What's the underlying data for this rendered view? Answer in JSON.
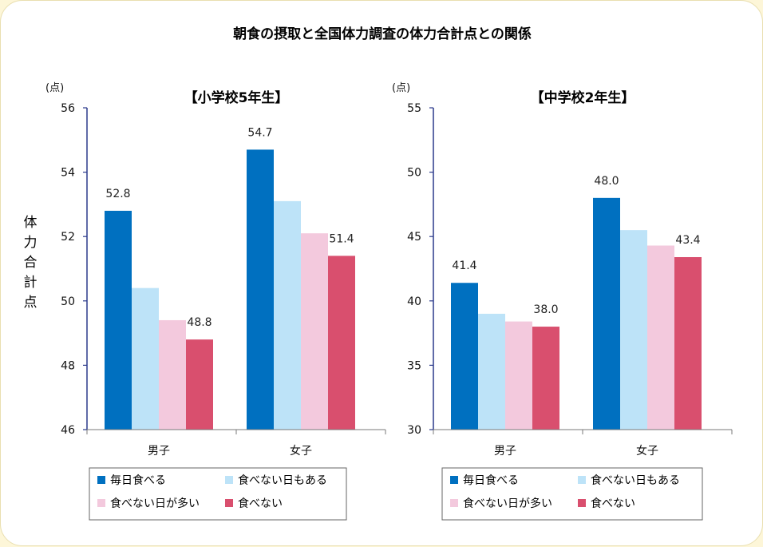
{
  "chart_data": {
    "title": "朝食の摂取と全国体力調査の体力合計点との関係",
    "ylabel": "体力合計点",
    "series_names": [
      "毎日食べる",
      "食べない日もある",
      "食べない日が多い",
      "食べない"
    ],
    "colors": [
      "#0070c0",
      "#bde3f8",
      "#f3c9dd",
      "#d94f6e"
    ],
    "panels": [
      {
        "type": "bar",
        "subtitle": "【小学校5年生】",
        "unit": "(点)",
        "ylim": [
          46,
          56
        ],
        "yticks": [
          "46",
          "48",
          "50",
          "52",
          "54",
          "56"
        ],
        "categories": [
          "男子",
          "女子"
        ],
        "series": [
          {
            "name": "毎日食べる",
            "values": [
              52.8,
              54.7
            ]
          },
          {
            "name": "食べない日もある",
            "values": [
              50.4,
              53.1
            ]
          },
          {
            "name": "食べない日が多い",
            "values": [
              49.4,
              52.1
            ]
          },
          {
            "name": "食べない",
            "values": [
              48.8,
              51.4
            ]
          }
        ],
        "data_labels": [
          {
            "text": "52.8",
            "category": 0,
            "series": 0
          },
          {
            "text": "48.8",
            "category": 0,
            "series": 3
          },
          {
            "text": "54.7",
            "category": 1,
            "series": 0
          },
          {
            "text": "51.4",
            "category": 1,
            "series": 3
          }
        ]
      },
      {
        "type": "bar",
        "subtitle": "【中学校2年生】",
        "unit": "(点)",
        "ylim": [
          30,
          55
        ],
        "yticks": [
          "30",
          "35",
          "40",
          "45",
          "50",
          "55"
        ],
        "categories": [
          "男子",
          "女子"
        ],
        "series": [
          {
            "name": "毎日食べる",
            "values": [
              41.4,
              48.0
            ]
          },
          {
            "name": "食べない日もある",
            "values": [
              39.0,
              45.5
            ]
          },
          {
            "name": "食べない日が多い",
            "values": [
              38.4,
              44.3
            ]
          },
          {
            "name": "食べない",
            "values": [
              38.0,
              43.4
            ]
          }
        ],
        "data_labels": [
          {
            "text": "41.4",
            "category": 0,
            "series": 0
          },
          {
            "text": "38.0",
            "category": 0,
            "series": 3
          },
          {
            "text": "48.0",
            "category": 1,
            "series": 0
          },
          {
            "text": "43.4",
            "category": 1,
            "series": 3
          }
        ]
      }
    ]
  }
}
